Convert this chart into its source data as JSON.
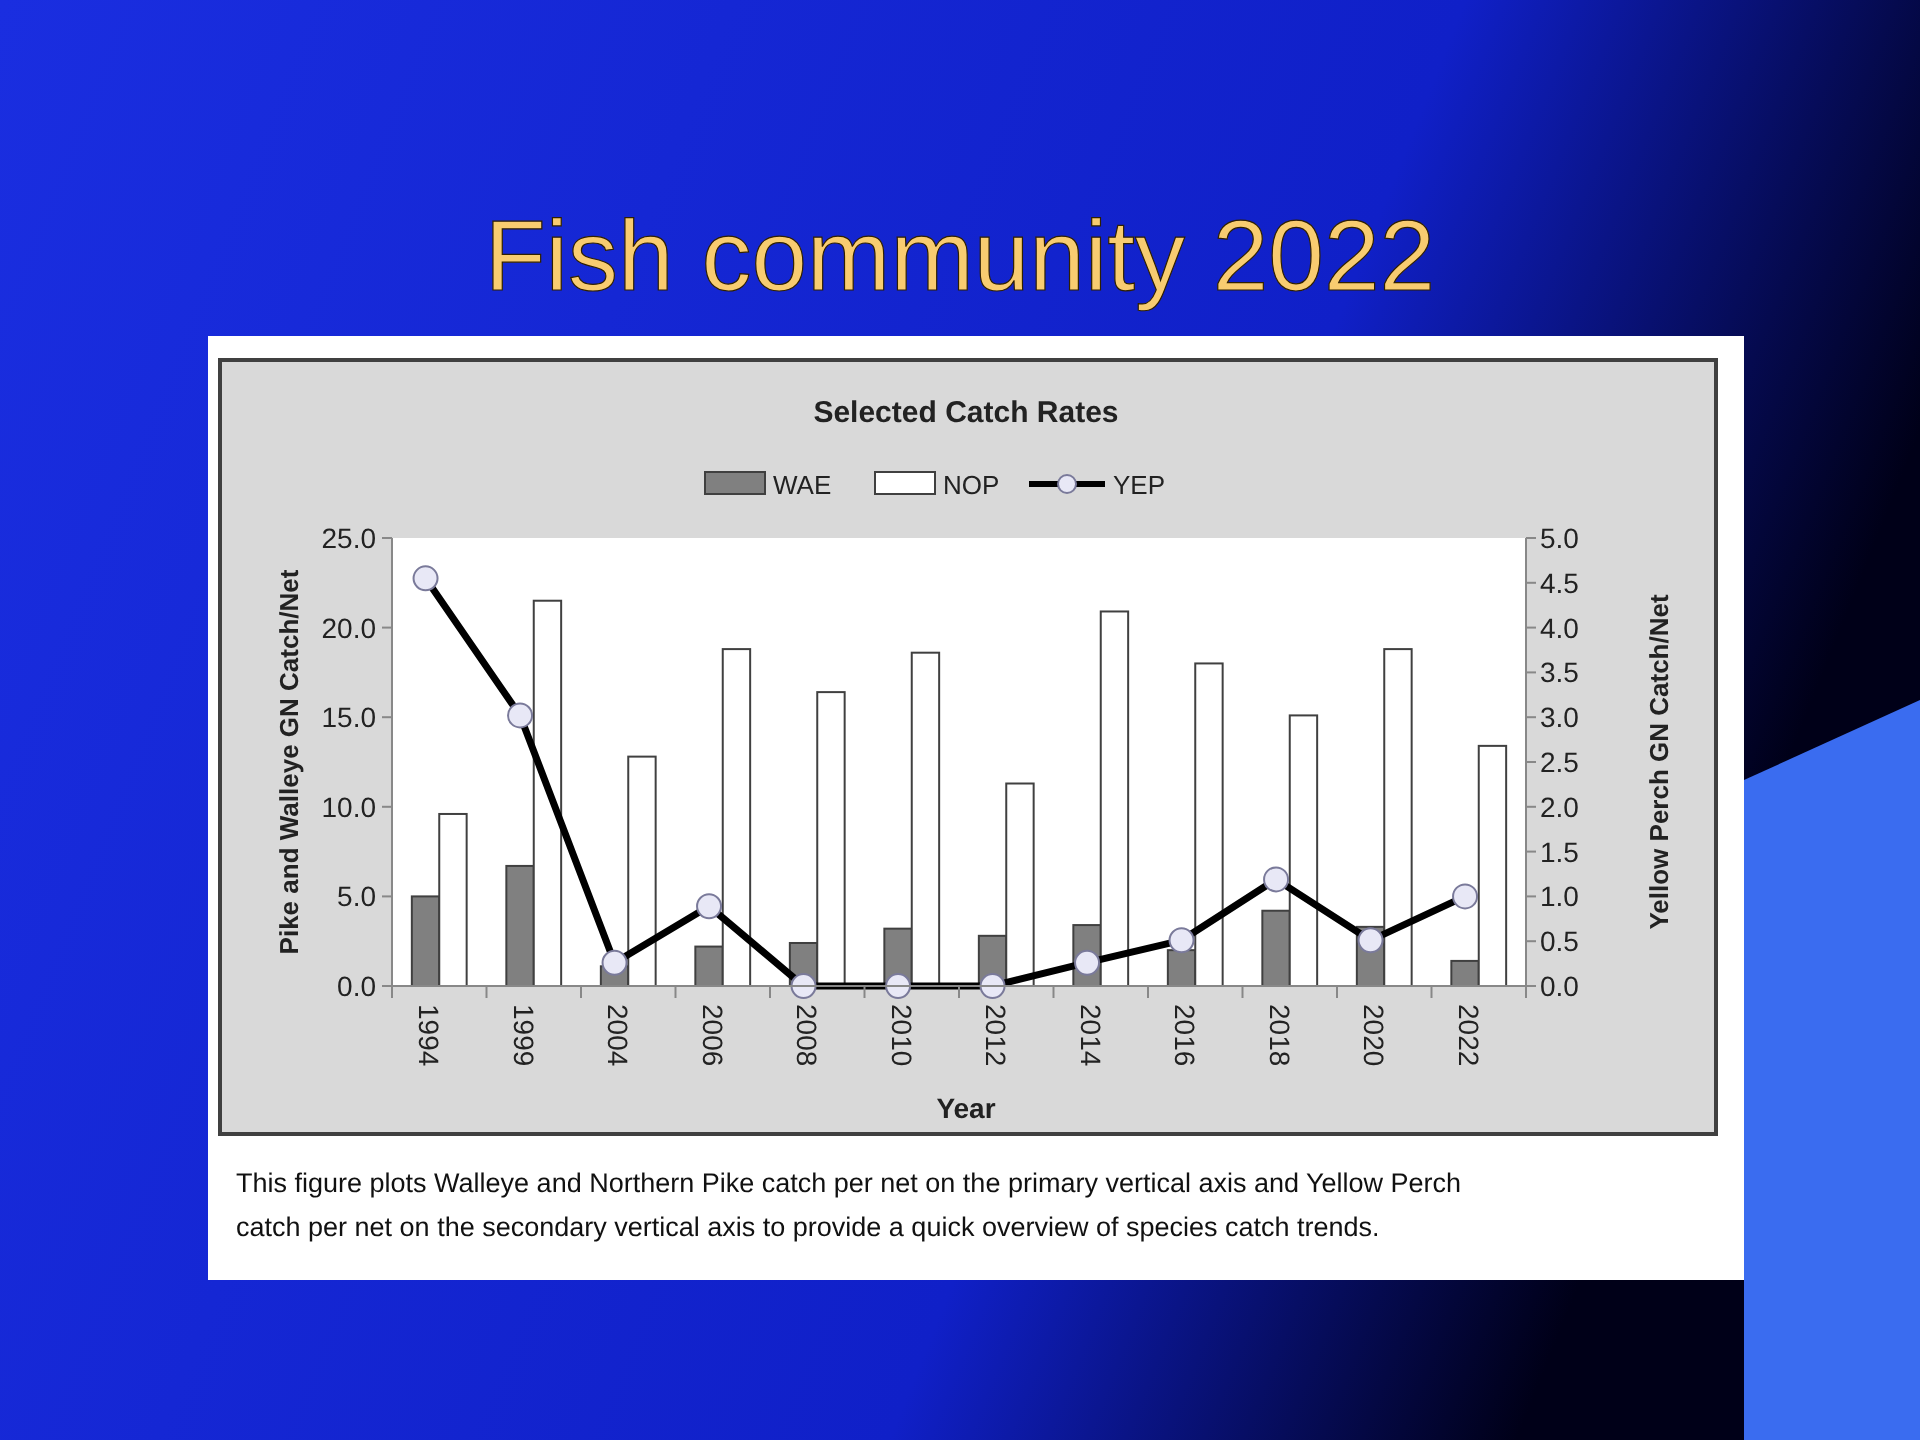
{
  "chart_data": {
    "type": "bar",
    "title": "Fish community 2022",
    "subtitle": "Selected Catch Rates",
    "xlabel": "Year",
    "ylabel": "Pike and Walleye GN Catch/Net",
    "y2label": "Yellow Perch GN Catch/Net",
    "categories": [
      "1994",
      "1999",
      "2004",
      "2006",
      "2008",
      "2010",
      "2012",
      "2014",
      "2016",
      "2018",
      "2020",
      "2022"
    ],
    "series": [
      {
        "name": "WAE",
        "color": "#808080",
        "values": [
          5.0,
          6.7,
          1.1,
          2.2,
          2.4,
          3.2,
          2.8,
          3.4,
          2.0,
          4.2,
          3.3,
          1.4
        ]
      },
      {
        "name": "NOP",
        "color": "#ffffff",
        "values": [
          9.6,
          21.5,
          12.8,
          18.8,
          16.4,
          18.6,
          11.3,
          20.9,
          18.0,
          15.1,
          18.8,
          13.4
        ]
      },
      {
        "name": "YEP",
        "type": "line",
        "axis": "y2",
        "color": "#000000",
        "values": [
          4.55,
          3.02,
          0.26,
          0.89,
          0,
          0,
          0,
          0.26,
          0.51,
          1.19,
          0.51,
          1.0
        ]
      }
    ],
    "ylim": [
      0,
      25
    ],
    "yticks": [
      {
        "value": 0,
        "label": "0.0"
      },
      {
        "value": 5,
        "label": "5.0"
      },
      {
        "value": 10,
        "label": "10.0"
      },
      {
        "value": 15,
        "label": "15.0"
      },
      {
        "value": 20,
        "label": "20.0"
      },
      {
        "value": 25,
        "label": "25.0"
      }
    ],
    "y2lim": [
      0,
      5
    ],
    "y2ticks": [
      {
        "value": 0,
        "label": "0.0"
      },
      0.5,
      {
        "value": 1,
        "label": "1.0"
      },
      1.5,
      {
        "value": 2,
        "label": "2.0"
      },
      2.5,
      {
        "value": 3,
        "label": "3.0"
      },
      3.5,
      {
        "value": 4,
        "label": "4.0"
      },
      4.5,
      {
        "value": 5,
        "label": "5.0"
      }
    ],
    "marker": "circle",
    "line_style": "solid",
    "legend": "top",
    "grid": false,
    "annotations": [
      "This figure plots Walleye and Northern Pike catch per net on the primary vertical axis and Yellow Perch catch per net on the secondary vertical axis to provide a quick overview of species catch trends."
    ]
  }
}
